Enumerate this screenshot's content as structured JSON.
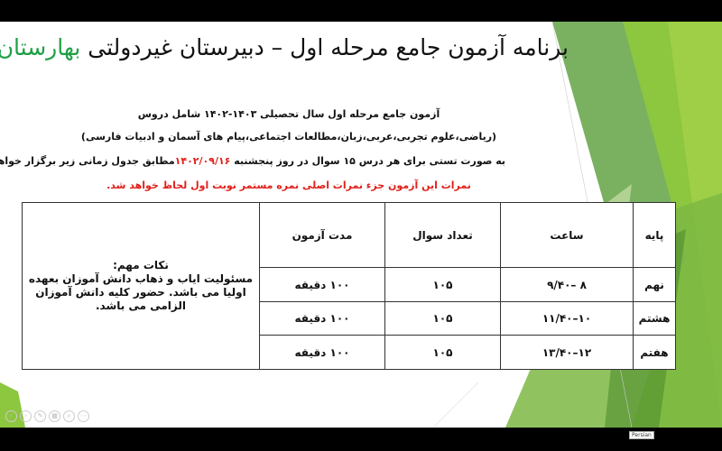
{
  "slide": {
    "title_main": "برنامه آزمون جامع مرحله اول – دبیرستان غیردولتی",
    "title_highlight": "بهارستان",
    "line1": "آزمون جامع مرحله اول سال تحصیلی ۱۴۰۳-۱۴۰۲ شامل دروس",
    "line2": "(ریاضی،علوم تجربی،عربی،زبان،مطالعات اجتماعی،پیام های آسمان و ادبیات فارسی)",
    "line3_pre": "به صورت تستی برای هر درس ۱۵ سوال در روز پنجشنبه",
    "line3_date": "۱۴۰۲/۰۹/۱۶",
    "line3_post": "مطابق جدول زمانی زیر برگزار خواهد شد.",
    "line4": "نمرات این آزمون جزء نمرات اصلی نمره مستمر نوبت اول لحاظ خواهد شد.",
    "colors": {
      "title_highlight": "#1fa045",
      "red_text": "#e0201a",
      "green_dark": "#5c9a3c",
      "green_light": "#8dc63f"
    }
  },
  "table": {
    "headers": {
      "grade": "پایه",
      "time": "ساعت",
      "count": "تعداد سوال",
      "duration": "مدت آزمون"
    },
    "rows": [
      {
        "grade": "نهم",
        "time": "۸ –۹/۴۰",
        "count": "۱۰۵",
        "duration": "۱۰۰ دقیقه"
      },
      {
        "grade": "هشتم",
        "time": "۱۰–۱۱/۴۰",
        "count": "۱۰۵",
        "duration": "۱۰۰ دقیقه"
      },
      {
        "grade": "هفتم",
        "time": "۱۲–۱۳/۴۰",
        "count": "۱۰۵",
        "duration": "۱۰۰ دقیقه"
      }
    ],
    "notes_title": "نکات مهم:",
    "notes_body": "مسئولیت ایاب و ذهاب دانش آموزان بعهده اولیا می باشد. حضور کلیه دانش آموزان الزامی می باشد."
  },
  "status": {
    "language": "Persian"
  }
}
